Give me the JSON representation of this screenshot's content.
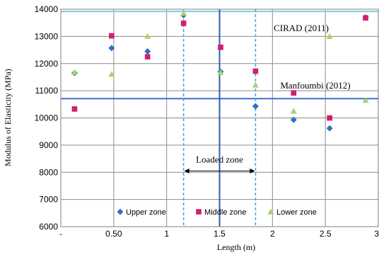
{
  "chart_data": {
    "type": "scatter",
    "title": "",
    "xlabel": "Length (m)",
    "ylabel": "Modulus of Elasticity (MPa)",
    "xlim": [
      0,
      3
    ],
    "ylim": [
      6000,
      14000
    ],
    "x_tick_labels": [
      "-",
      "0.50",
      "1",
      "1.5",
      "2",
      "2.5",
      "3"
    ],
    "y_tick_labels": [
      "6000",
      "7000",
      "8000",
      "9000",
      "10000",
      "11000",
      "12000",
      "13000",
      "14000"
    ],
    "grid": true,
    "legend_position": "bottom",
    "series": [
      {
        "name": "Upper zone",
        "marker": "diamond",
        "color": "#2f6fc4",
        "x": [
          0.13,
          0.48,
          0.82,
          1.16,
          1.51,
          1.84,
          2.2,
          2.54,
          2.88
        ],
        "y": [
          11650,
          12570,
          12450,
          13780,
          11700,
          10430,
          9930,
          9620,
          13700
        ]
      },
      {
        "name": "Middle zone",
        "marker": "square",
        "color": "#d21f6e",
        "x": [
          0.13,
          0.48,
          0.82,
          1.16,
          1.51,
          1.84,
          2.2,
          2.54,
          2.88
        ],
        "y": [
          10330,
          13020,
          12250,
          13480,
          12600,
          11720,
          10920,
          10000,
          13680
        ]
      },
      {
        "name": "Lower zone",
        "marker": "triangle",
        "color": "#a8d36a",
        "x": [
          0.13,
          0.48,
          0.82,
          1.16,
          1.51,
          1.84,
          2.2,
          2.54,
          2.88
        ],
        "y": [
          11680,
          11610,
          13010,
          13850,
          11670,
          11210,
          10250,
          13000,
          10650
        ]
      }
    ],
    "reference_lines": [
      {
        "label": "CIRAD (2011)",
        "y": 13920,
        "color": "#7fcbe0"
      },
      {
        "label": "Manfoumbi (2012)",
        "y": 10710,
        "color": "#3d6fd1"
      }
    ],
    "vertical_lines": [
      {
        "x": 1.16,
        "style": "dashed",
        "color": "#3fa9e0"
      },
      {
        "x": 1.5,
        "style": "solid",
        "color": "#2b5fb0"
      },
      {
        "x": 1.84,
        "style": "dashed",
        "color": "#3fa9e0"
      }
    ],
    "annotations": [
      {
        "text": "Loaded zone",
        "x_from": 1.16,
        "x_to": 1.84,
        "y": 8050
      }
    ]
  }
}
